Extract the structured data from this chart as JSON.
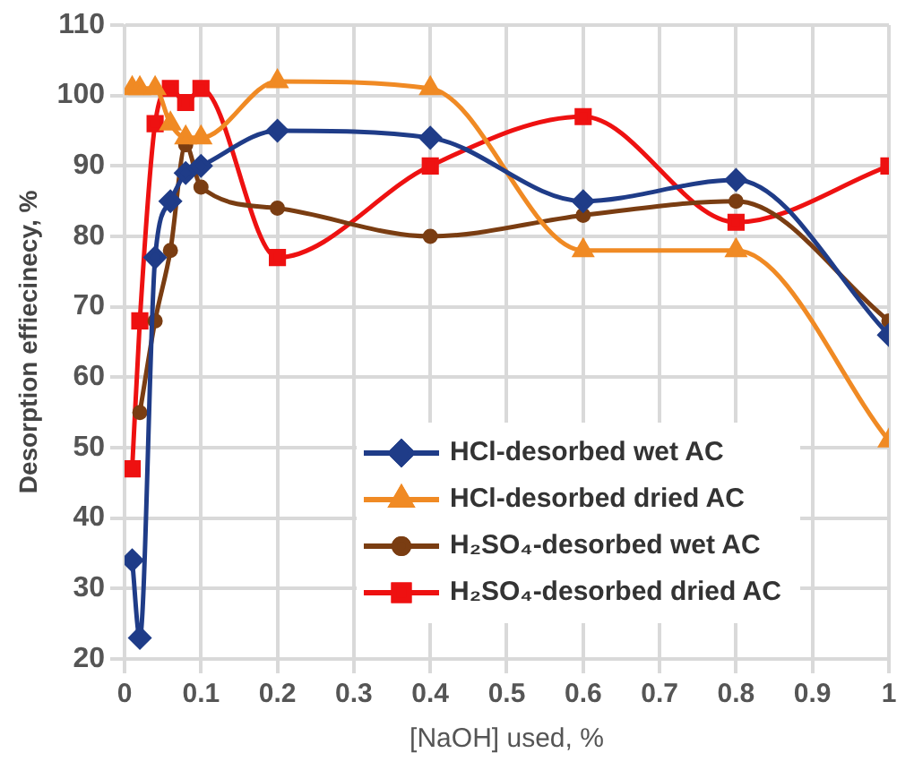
{
  "chart_data": {
    "type": "line",
    "xlabel": "[NaOH] used, %",
    "ylabel": "Desorption effiecinecy, %",
    "x": [
      0.01,
      0.02,
      0.04,
      0.06,
      0.08,
      0.1,
      0.2,
      0.4,
      0.6,
      0.8,
      1
    ],
    "series": [
      {
        "name": "HCl-desorbed wet AC",
        "color": "#1f3c88",
        "marker": "diamond",
        "values": [
          34,
          23,
          77,
          85,
          89,
          90,
          95,
          94,
          85,
          88,
          66
        ]
      },
      {
        "name": "HCl-desorbed dried AC",
        "color": "#f08a24",
        "marker": "triangle",
        "values": [
          101,
          101,
          101,
          96,
          94,
          94,
          102,
          101,
          78,
          78,
          51
        ]
      },
      {
        "name": "H₂SO₄-desorbed wet AC",
        "color": "#7a3d12",
        "marker": "circle",
        "values": [
          null,
          55,
          68,
          78,
          93,
          87,
          84,
          80,
          83,
          85,
          68
        ]
      },
      {
        "name": "H₂SO₄-desorbed dried AC",
        "color": "#ee1111",
        "marker": "square",
        "values": [
          47,
          68,
          96,
          101,
          99,
          101,
          77,
          90,
          97,
          82,
          90
        ]
      }
    ],
    "xlim": [
      0,
      1
    ],
    "xticks": [
      0,
      0.1,
      0.2,
      0.3,
      0.4,
      0.5,
      0.6,
      0.7,
      0.8,
      0.9,
      1
    ],
    "ylim": [
      20,
      110
    ],
    "yticks": [
      20,
      30,
      40,
      50,
      60,
      70,
      80,
      90,
      100,
      110
    ],
    "grid": true,
    "legend": "bottom",
    "line_style": "solid"
  }
}
